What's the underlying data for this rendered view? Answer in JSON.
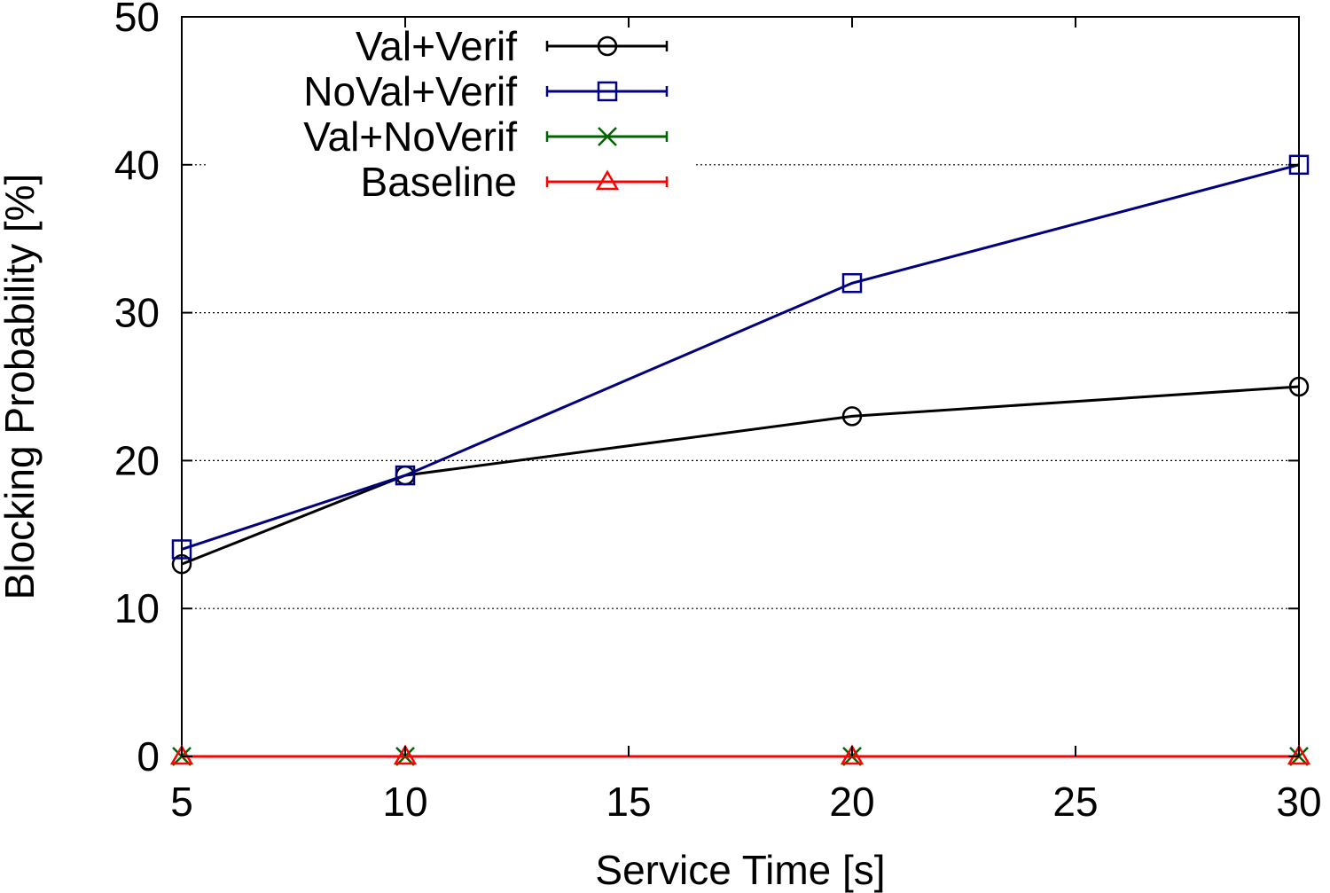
{
  "chart_data": {
    "type": "line",
    "title": "",
    "xlabel": "Service Time [s]",
    "ylabel": "Blocking Probability [%]",
    "xlim": [
      5,
      30
    ],
    "ylim": [
      0,
      50
    ],
    "xticks": [
      5,
      10,
      15,
      20,
      25,
      30
    ],
    "yticks": [
      0,
      10,
      20,
      30,
      40,
      50
    ],
    "x_tick_labels": [
      "5",
      "10",
      "15",
      "20",
      "25",
      "30"
    ],
    "y_tick_labels": [
      "0",
      "10",
      "20",
      "30",
      "40",
      "50"
    ],
    "grid": "horizontal-dotted",
    "legend_position": "top-left",
    "x": [
      5,
      10,
      20,
      30
    ],
    "series": [
      {
        "name": "Val+Verif",
        "values": [
          13,
          19,
          23,
          25
        ],
        "color": "#000000",
        "marker": "circle-icon"
      },
      {
        "name": "NoVal+Verif",
        "values": [
          14,
          19,
          32,
          40
        ],
        "color": "#000080",
        "marker": "square-icon"
      },
      {
        "name": "Val+NoVerif",
        "values": [
          0,
          0,
          0,
          0
        ],
        "color": "#006400",
        "marker": "cross-icon"
      },
      {
        "name": "Baseline",
        "values": [
          0,
          0,
          0,
          0
        ],
        "color": "#ff0000",
        "marker": "triangle-icon"
      }
    ]
  }
}
